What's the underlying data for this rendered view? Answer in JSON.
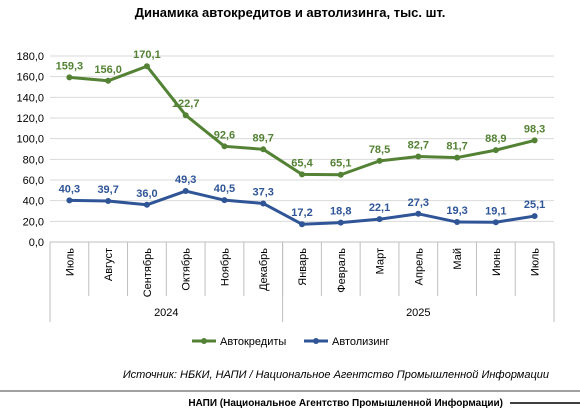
{
  "chart_data": {
    "type": "line",
    "title": "Динамика автокредитов и автолизинга, тыс. шт.",
    "categories": [
      "Июль",
      "Август",
      "Сентябрь",
      "Октябрь",
      "Ноябрь",
      "Декабрь",
      "Январь",
      "Февраль",
      "Март",
      "Апрель",
      "Май",
      "Июнь",
      "Июль"
    ],
    "category_groups": [
      {
        "label": "2024",
        "count": 6
      },
      {
        "label": "2025",
        "count": 7
      }
    ],
    "series": [
      {
        "name": "Автокредиты",
        "color": "#548235",
        "values": [
          159.3,
          156.0,
          170.1,
          122.7,
          92.6,
          89.7,
          65.4,
          65.1,
          78.5,
          82.7,
          81.7,
          88.9,
          98.3
        ],
        "labels": [
          "159,3",
          "156,0",
          "170,1",
          "122,7",
          "92,6",
          "89,7",
          "65,4",
          "65,1",
          "78,5",
          "82,7",
          "81,7",
          "88,9",
          "98,3"
        ]
      },
      {
        "name": "Автолизинг",
        "color": "#2F5597",
        "values": [
          40.3,
          39.7,
          36.0,
          49.3,
          40.5,
          37.3,
          17.2,
          18.8,
          22.1,
          27.3,
          19.3,
          19.1,
          25.1
        ],
        "labels": [
          "40,3",
          "39,7",
          "36,0",
          "49,3",
          "40,5",
          "37,3",
          "17,2",
          "18,8",
          "22,1",
          "27,3",
          "19,3",
          "19,1",
          "25,1"
        ]
      }
    ],
    "ylim": [
      0,
      180
    ],
    "yticks": [
      0,
      20,
      40,
      60,
      80,
      100,
      120,
      140,
      160,
      180
    ],
    "ytick_labels": [
      "0,0",
      "20,0",
      "40,0",
      "60,0",
      "80,0",
      "100,0",
      "120,0",
      "140,0",
      "160,0",
      "180,0"
    ],
    "grid": true,
    "legend": "bottom-center"
  },
  "source": "Источник: НБКИ, НАПИ / Национальное Агентство Промышленной Информации",
  "footer": "НАПИ (Национальное Агентство Промышленной Информации)"
}
